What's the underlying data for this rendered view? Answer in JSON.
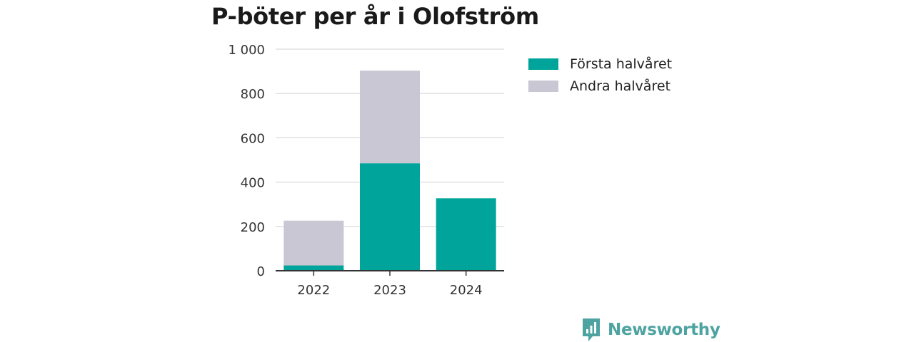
{
  "title": "P-böter per år i Olofström",
  "brand": {
    "name": "Newsworthy",
    "icon": "newsworthy-logo-icon",
    "color": "#4da3a0"
  },
  "chart_data": {
    "type": "bar",
    "stacked": true,
    "title": "P-böter per år i Olofström",
    "xlabel": "",
    "ylabel": "",
    "categories": [
      "2022",
      "2023",
      "2024"
    ],
    "series": [
      {
        "name": "Första halvåret",
        "values": [
          24,
          485,
          327
        ],
        "color": "#00a49a"
      },
      {
        "name": "Andra halvåret",
        "values": [
          202,
          418,
          0
        ],
        "color": "#c8c7d3"
      }
    ],
    "ylim": [
      0,
      1000
    ],
    "yticks": [
      0,
      200,
      400,
      600,
      800,
      1000
    ],
    "ytick_labels": [
      "0",
      "200",
      "400",
      "600",
      "800",
      "1 000"
    ],
    "grid": true,
    "legend_position": "right"
  }
}
